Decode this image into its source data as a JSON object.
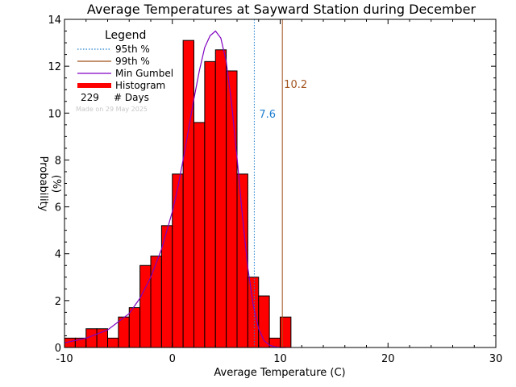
{
  "chart_data": {
    "type": "bar",
    "title": "Average Temperatures at Sayward Station during December",
    "xlabel": "Average Temperature (C)",
    "ylabel_top": "Probability",
    "ylabel_bottom": "(%)",
    "xlim": [
      -10,
      30
    ],
    "ylim": [
      0,
      14
    ],
    "xticks": [
      -10,
      0,
      10,
      20,
      30
    ],
    "yticks": [
      0,
      2,
      4,
      6,
      8,
      10,
      12,
      14
    ],
    "bin_width": 1,
    "histogram": {
      "bin_starts": [
        -10,
        -9,
        -8,
        -7,
        -6,
        -5,
        -4,
        -3,
        -2,
        -1,
        0,
        1,
        2,
        3,
        4,
        5,
        6,
        7,
        8,
        9,
        10
      ],
      "values": [
        0.4,
        0.4,
        0.8,
        0.8,
        0.4,
        1.3,
        1.7,
        3.5,
        3.9,
        5.2,
        7.4,
        13.1,
        9.6,
        12.2,
        12.7,
        11.8,
        7.4,
        3.0,
        2.2,
        0.4,
        1.3
      ]
    },
    "gumbel_curve": {
      "x": [
        -10,
        -8,
        -6,
        -4,
        -3,
        -2,
        -1,
        0,
        0.5,
        1,
        1.5,
        2,
        2.5,
        3,
        3.5,
        4,
        4.5,
        5,
        5.5,
        6,
        6.5,
        7,
        7.5,
        8,
        8.5,
        9,
        9.5,
        10,
        10.5
      ],
      "y": [
        0.2,
        0.4,
        0.75,
        1.45,
        2.1,
        3.0,
        4.2,
        5.8,
        6.8,
        8.0,
        9.3,
        10.6,
        11.8,
        12.8,
        13.3,
        13.5,
        13.2,
        12.2,
        10.4,
        8.1,
        5.6,
        3.4,
        1.8,
        0.8,
        0.3,
        0.1,
        0.03,
        0.0,
        0.0
      ]
    },
    "percentile_95": {
      "x": 7.6,
      "label": "7.6"
    },
    "percentile_99": {
      "x": 10.2,
      "label": "10.2"
    },
    "legend": {
      "placement": "top-left",
      "title": "Legend",
      "items": [
        "95th %",
        "99th %",
        "Min Gumbel",
        "Histogram"
      ],
      "count_value": "229",
      "count_label": "# Days"
    },
    "watermark": "Made on 29 May 2025",
    "colors": {
      "histogram_fill": "#ff0000",
      "gumbel_line": "#8000c0",
      "p95_line": "#1f7fd0",
      "p99_line": "#a0521c"
    }
  }
}
